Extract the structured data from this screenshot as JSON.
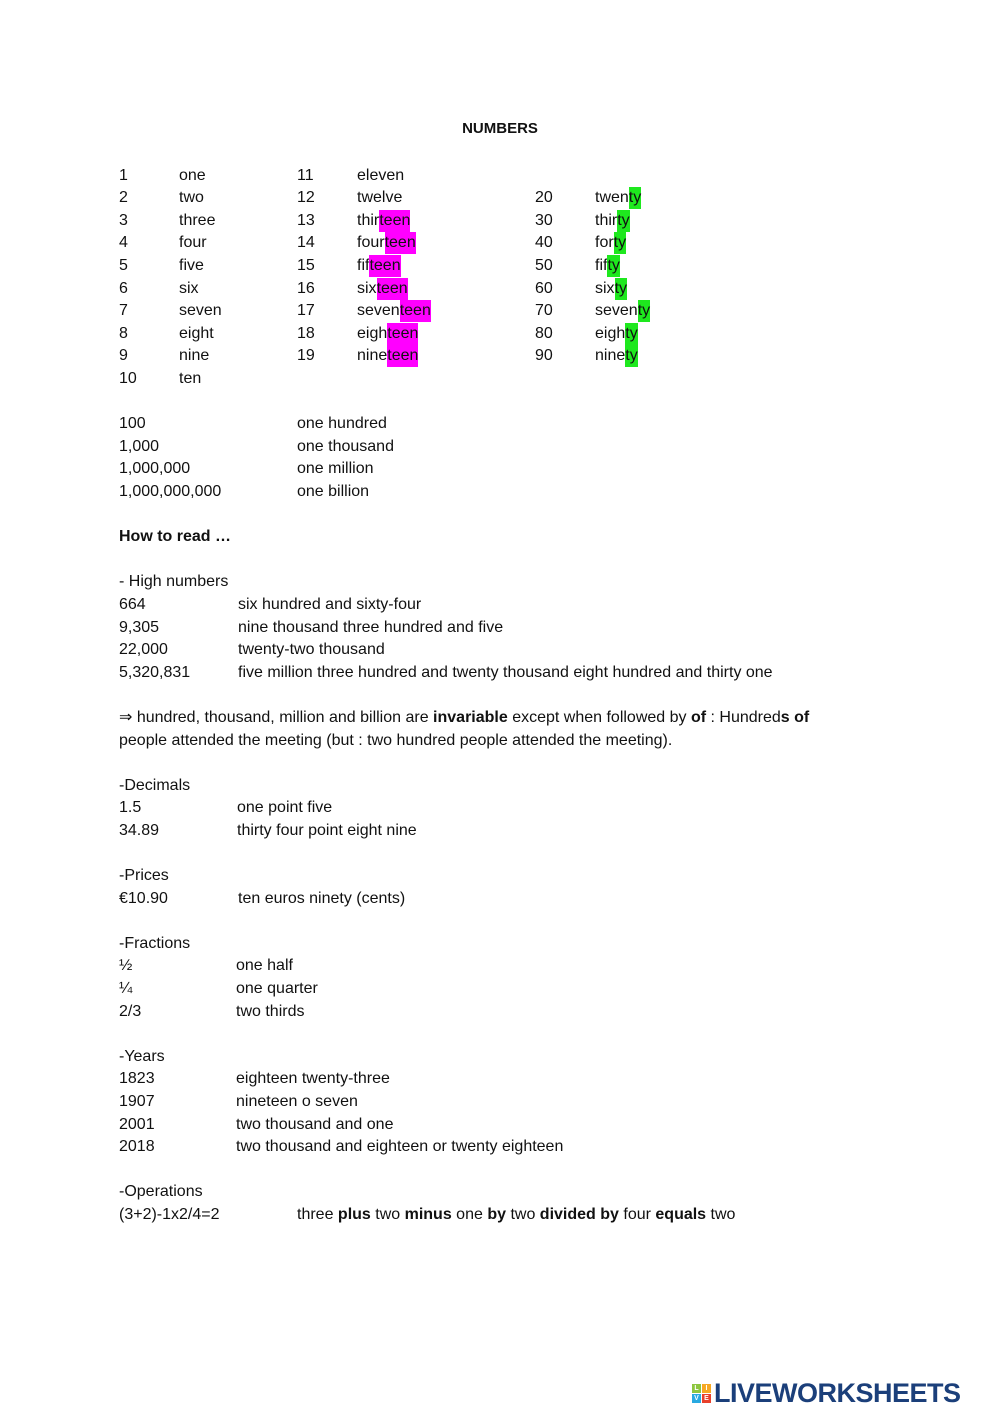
{
  "title": "NUMBERS",
  "colors": {
    "teen_highlight": "#ff00ff",
    "ty_highlight": "#1ee81e",
    "logo": "#1b3f7a"
  },
  "units": [
    {
      "num": "1",
      "word": "one"
    },
    {
      "num": "2",
      "word": "two"
    },
    {
      "num": "3",
      "word": "three"
    },
    {
      "num": "4",
      "word": "four"
    },
    {
      "num": "5",
      "word": "five"
    },
    {
      "num": "6",
      "word": "six"
    },
    {
      "num": "7",
      "word": "seven"
    },
    {
      "num": "8",
      "word": "eight"
    },
    {
      "num": "9",
      "word": "nine"
    },
    {
      "num": "10",
      "word": "ten"
    }
  ],
  "teens": [
    {
      "num": "11",
      "stem": "eleven",
      "suffix": ""
    },
    {
      "num": "12",
      "stem": "twelve",
      "suffix": ""
    },
    {
      "num": "13",
      "stem": "thir",
      "suffix": "teen"
    },
    {
      "num": "14",
      "stem": "four",
      "suffix": "teen"
    },
    {
      "num": "15",
      "stem": "fif",
      "suffix": "teen"
    },
    {
      "num": "16",
      "stem": "six",
      "suffix": "teen"
    },
    {
      "num": "17",
      "stem": "seven",
      "suffix": "teen"
    },
    {
      "num": "18",
      "stem": "eigh",
      "suffix": "teen"
    },
    {
      "num": "19",
      "stem": "nine",
      "suffix": "teen"
    }
  ],
  "tens": [
    {
      "num": "20",
      "stem": "twen",
      "suffix": "ty"
    },
    {
      "num": "30",
      "stem": "thir",
      "suffix": "ty"
    },
    {
      "num": "40",
      "stem": "for",
      "suffix": "ty"
    },
    {
      "num": "50",
      "stem": "fif",
      "suffix": "ty"
    },
    {
      "num": "60",
      "stem": "six",
      "suffix": "ty"
    },
    {
      "num": "70",
      "stem": "seven",
      "suffix": "ty"
    },
    {
      "num": "80",
      "stem": "eigh",
      "suffix": "ty"
    },
    {
      "num": "90",
      "stem": "nine",
      "suffix": "ty"
    }
  ],
  "big_numbers": [
    {
      "num": "100",
      "word": "one hundred"
    },
    {
      "num": "1,000",
      "word": "one thousand"
    },
    {
      "num": "1,000,000",
      "word": "one million"
    },
    {
      "num": "1,000,000,000",
      "word": "one billion"
    }
  ],
  "how_to_read": "How to read …",
  "high_numbers": {
    "heading": "- High numbers",
    "rows": [
      {
        "num": "664",
        "word": "six hundred and sixty-four"
      },
      {
        "num": "9,305",
        "word": "nine thousand three hundred and five"
      },
      {
        "num": "22,000",
        "word": "twenty-two thousand"
      },
      {
        "num": "5,320,831",
        "word": "five million three hundred and twenty thousand eight hundred and thirty one"
      }
    ]
  },
  "note": {
    "line1": [
      {
        "t": "⇒ hundred, thousand, million and billion are ",
        "b": false
      },
      {
        "t": "invariable",
        "b": true
      },
      {
        "t": " except when followed by ",
        "b": false
      },
      {
        "t": "of",
        "b": true
      },
      {
        "t": " : Hundred",
        "b": false
      },
      {
        "t": "s of",
        "b": true
      }
    ],
    "line2": [
      {
        "t": "people attended the meeting (but : two hundred people attended the meeting).",
        "b": false
      }
    ]
  },
  "decimals": {
    "heading": "-Decimals",
    "rows": [
      {
        "num": "1.5",
        "word": "one point five"
      },
      {
        "num": "34.89",
        "word": "thirty four point eight nine"
      }
    ]
  },
  "prices": {
    "heading": "-Prices",
    "rows": [
      {
        "num": "€10.90",
        "word": "ten euros ninety (cents)"
      }
    ]
  },
  "fractions": {
    "heading": "-Fractions",
    "rows": [
      {
        "num": "½",
        "word": "one half"
      },
      {
        "num": "¼",
        "word": "one quarter"
      },
      {
        "num": "2/3",
        "word": "two thirds"
      }
    ]
  },
  "years": {
    "heading": "-Years",
    "rows": [
      {
        "num": "1823",
        "word": "eighteen twenty-three"
      },
      {
        "num": "1907",
        "word": "nineteen o seven"
      },
      {
        "num": "2001",
        "word": "two thousand and one"
      },
      {
        "num": "2018",
        "word": "two thousand and eighteen or twenty eighteen"
      }
    ]
  },
  "operations": {
    "heading": "-Operations",
    "expr": "(3+2)-1x2/4=2",
    "words": [
      {
        "t": "three ",
        "b": false
      },
      {
        "t": "plus",
        "b": true
      },
      {
        "t": " two ",
        "b": false
      },
      {
        "t": "minus",
        "b": true
      },
      {
        "t": " one ",
        "b": false
      },
      {
        "t": "by",
        "b": true
      },
      {
        "t": " two ",
        "b": false
      },
      {
        "t": "divided by",
        "b": true
      },
      {
        "t": " four ",
        "b": false
      },
      {
        "t": "equals",
        "b": true
      },
      {
        "t": " two",
        "b": false
      }
    ]
  },
  "logo": {
    "text": "LIVEWORKSHEETS",
    "tiles": [
      "L",
      "I",
      "V",
      "E"
    ]
  }
}
